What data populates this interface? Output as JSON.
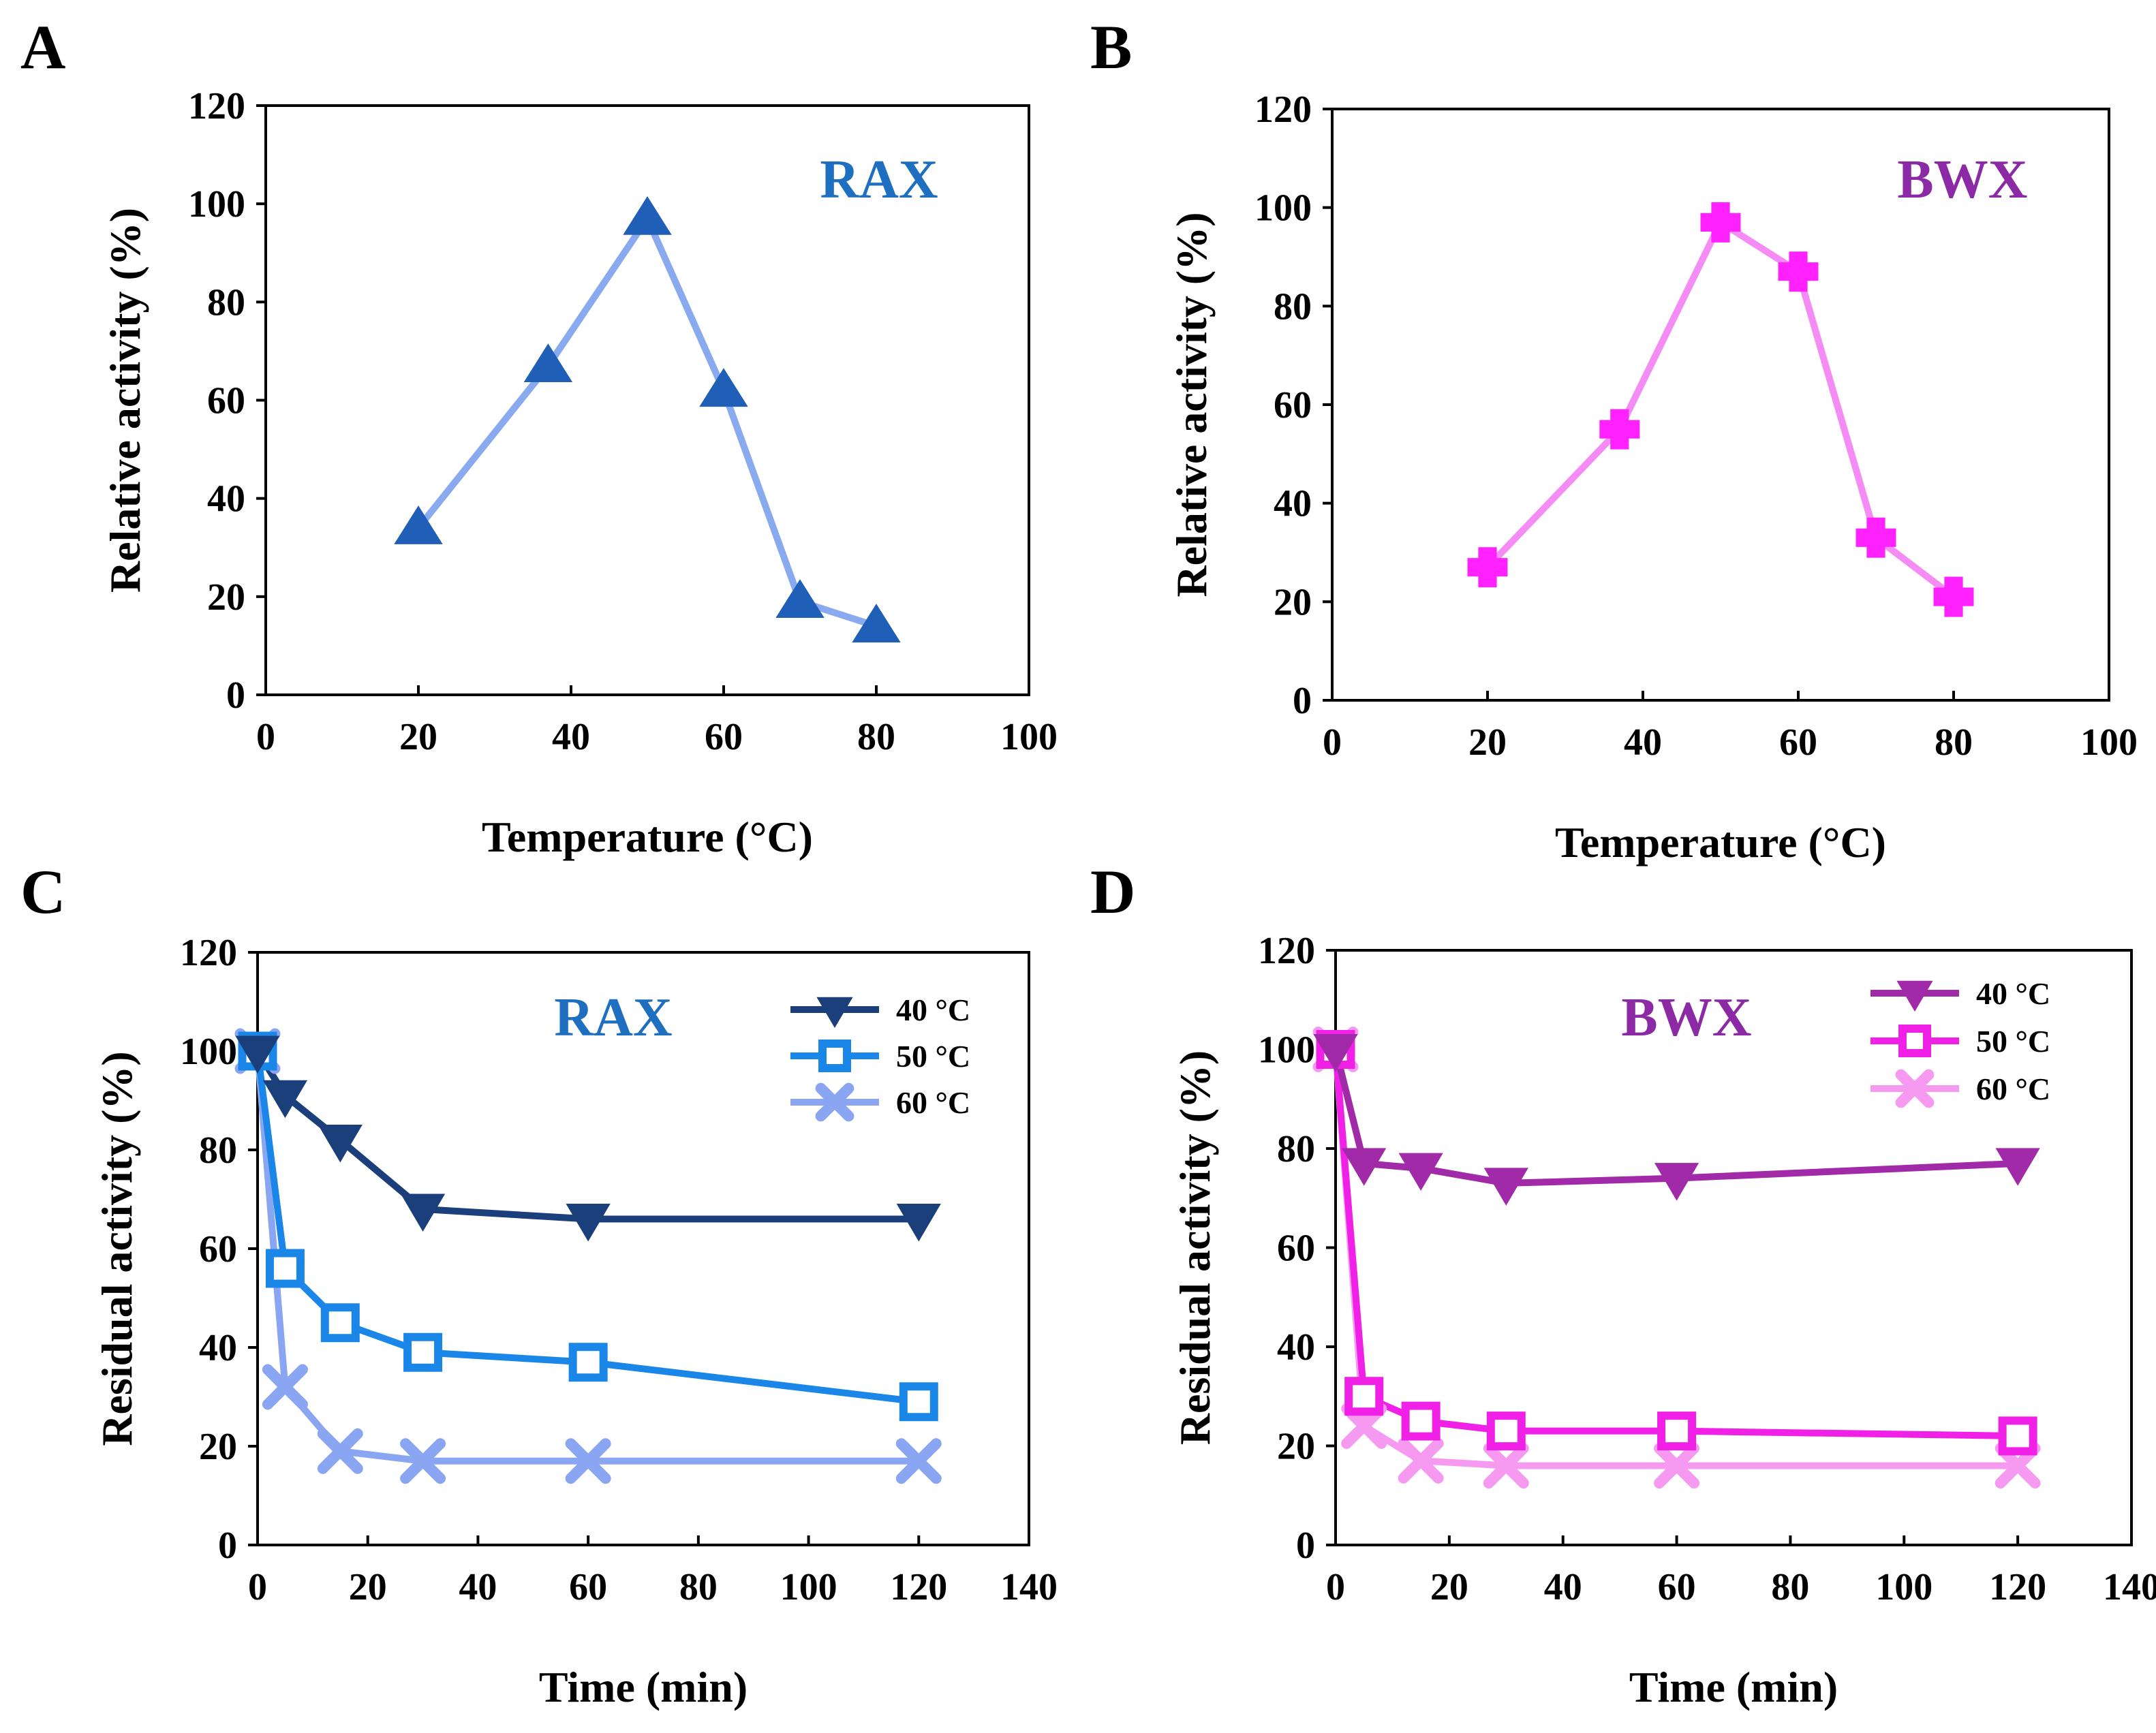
{
  "chart_data": [
    {
      "type": "line",
      "panel": "A",
      "label": "RAX",
      "label_color": "#1e6fc0",
      "xlabel": "Temperature (°C)",
      "ylabel": "Relative activity (%)",
      "xlim": [
        0,
        100
      ],
      "ylim": [
        0,
        120
      ],
      "xticks": [
        "0",
        "20",
        "40",
        "60",
        "80",
        "100"
      ],
      "yticks": [
        "0",
        "20",
        "40",
        "60",
        "80",
        "100",
        "120"
      ],
      "legend": false,
      "series": [
        {
          "name": "RAX",
          "marker": "triangle-up",
          "marker_color": "#1f5fb8",
          "line_color": "#8aaaf0",
          "x": [
            20,
            37,
            50,
            60,
            70,
            80
          ],
          "values": [
            34,
            67,
            97,
            62,
            19,
            14
          ]
        }
      ]
    },
    {
      "type": "line",
      "panel": "B",
      "label": "BWX",
      "label_color": "#8c2aa6",
      "xlabel": "Temperature (°C)",
      "ylabel": "Relative activity (%)",
      "xlim": [
        0,
        100
      ],
      "ylim": [
        0,
        120
      ],
      "xticks": [
        "0",
        "20",
        "40",
        "60",
        "80",
        "100"
      ],
      "yticks": [
        "0",
        "20",
        "40",
        "60",
        "80",
        "100",
        "120"
      ],
      "legend": false,
      "series": [
        {
          "name": "BWX",
          "marker": "cross-plus",
          "marker_color": "#ff22ff",
          "line_color": "#f58cf5",
          "x": [
            20,
            37,
            50,
            60,
            70,
            80
          ],
          "values": [
            27,
            55,
            97,
            87,
            33,
            21
          ]
        }
      ]
    },
    {
      "type": "line",
      "panel": "C",
      "label": "RAX",
      "label_color": "#1e6fc0",
      "xlabel": "Time (min)",
      "ylabel": "Residual activity (%)",
      "xlim": [
        0,
        140
      ],
      "ylim": [
        0,
        120
      ],
      "xticks": [
        "0",
        "20",
        "40",
        "60",
        "80",
        "100",
        "120",
        "140"
      ],
      "yticks": [
        "0",
        "20",
        "40",
        "60",
        "80",
        "100",
        "120"
      ],
      "legend": "top-right",
      "series": [
        {
          "name": "40 °C",
          "marker": "triangle-down",
          "marker_color": "#1a3f7a",
          "line_color": "#1a3f7a",
          "x": [
            0,
            5,
            15,
            30,
            60,
            120
          ],
          "values": [
            100,
            91,
            82,
            68,
            66,
            66
          ]
        },
        {
          "name": "50 °C",
          "marker": "square-open",
          "marker_color": "#1a86e8",
          "line_color": "#1a86e8",
          "x": [
            0,
            5,
            15,
            30,
            60,
            120
          ],
          "values": [
            100,
            56,
            45,
            39,
            37,
            29
          ]
        },
        {
          "name": "60 °C",
          "marker": "x-cross",
          "marker_color": "#8aa6f2",
          "line_color": "#8aa6f2",
          "x": [
            0,
            5,
            15,
            30,
            60,
            120
          ],
          "values": [
            100,
            32,
            19,
            17,
            17,
            17
          ]
        }
      ]
    },
    {
      "type": "line",
      "panel": "D",
      "label": "BWX",
      "label_color": "#8c2aa6",
      "xlabel": "Time (min)",
      "ylabel": "Residual activity (%)",
      "xlim": [
        0,
        140
      ],
      "ylim": [
        0,
        120
      ],
      "xticks": [
        "0",
        "20",
        "40",
        "60",
        "80",
        "100",
        "120",
        "140"
      ],
      "yticks": [
        "0",
        "20",
        "40",
        "60",
        "80",
        "100",
        "120"
      ],
      "legend": "top-right",
      "series": [
        {
          "name": "40 °C",
          "marker": "triangle-down",
          "marker_color": "#a12aa8",
          "line_color": "#a12aa8",
          "x": [
            0,
            5,
            15,
            30,
            60,
            120
          ],
          "values": [
            100,
            77,
            76,
            73,
            74,
            77
          ]
        },
        {
          "name": "50 °C",
          "marker": "square-open",
          "marker_color": "#f020e6",
          "line_color": "#f020e6",
          "x": [
            0,
            5,
            15,
            30,
            60,
            120
          ],
          "values": [
            100,
            30,
            25,
            23,
            23,
            22
          ]
        },
        {
          "name": "60 °C",
          "marker": "x-cross",
          "marker_color": "#f59af0",
          "line_color": "#f59af0",
          "x": [
            0,
            5,
            15,
            30,
            60,
            120
          ],
          "values": [
            100,
            24,
            17,
            16,
            16,
            16
          ]
        }
      ]
    }
  ]
}
